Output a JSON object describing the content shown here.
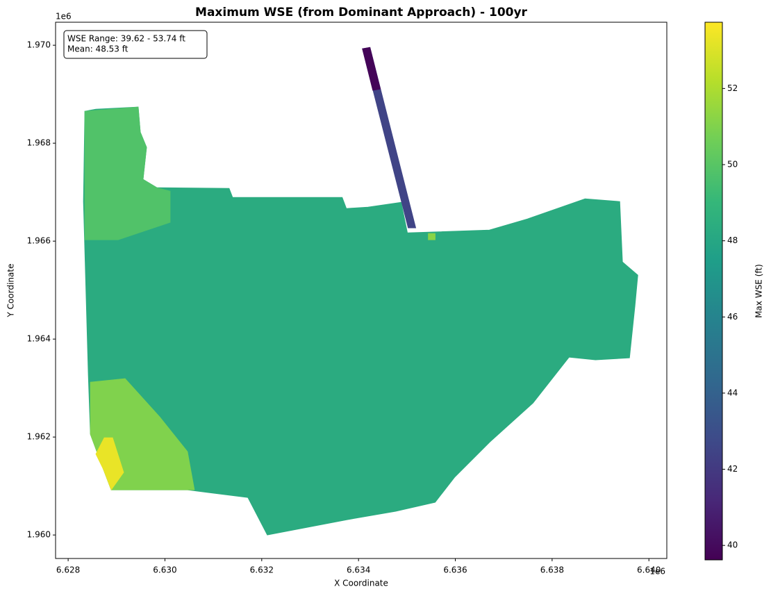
{
  "chart_data": {
    "type": "mesh",
    "title": "Maximum WSE (from Dominant Approach) - 100yr",
    "x_label": "X Coordinate",
    "y_label": "Y Coordinate",
    "x_offset_label": "1e6",
    "y_offset_label": "1e6",
    "annotation": [
      "WSE Range: 39.62 - 53.74 ft",
      "Mean: 48.53 ft"
    ],
    "xlim": [
      6627740,
      6640370
    ],
    "ylim": [
      1959520,
      1970470
    ],
    "xticks": [
      {
        "value": 6628000,
        "label": "6.628"
      },
      {
        "value": 6630000,
        "label": "6.630"
      },
      {
        "value": 6632000,
        "label": "6.632"
      },
      {
        "value": 6634000,
        "label": "6.634"
      },
      {
        "value": 6636000,
        "label": "6.636"
      },
      {
        "value": 6638000,
        "label": "6.638"
      },
      {
        "value": 6640000,
        "label": "6.640"
      }
    ],
    "yticks": [
      {
        "value": 1960000,
        "label": "1.960"
      },
      {
        "value": 1962000,
        "label": "1.962"
      },
      {
        "value": 1964000,
        "label": "1.964"
      },
      {
        "value": 1966000,
        "label": "1.966"
      },
      {
        "value": 1968000,
        "label": "1.968"
      },
      {
        "value": 1970000,
        "label": "1.970"
      }
    ],
    "colormap": "viridis",
    "colorbar": {
      "label": "Max WSE (ft)",
      "lim": [
        39.62,
        53.74
      ],
      "ticks": [
        40,
        42,
        44,
        46,
        48,
        50,
        52
      ]
    },
    "regions": [
      {
        "value": 48.3,
        "x": [
          6628344,
          6628573,
          6629448,
          6629491,
          6629620,
          6629548,
          6629835,
          6631326,
          6631398,
          6633663,
          6633749,
          6634194,
          6634882,
          6635011,
          6636703,
          6637491,
          6638681,
          6639398,
          6639455,
          6639771,
          6639713,
          6639599,
          6638896,
          6638351,
          6637606,
          6636717,
          6635986,
          6635584,
          6634767,
          6633763,
          6632115,
          6631713,
          6630896,
          6630466,
          6628889,
          6628731,
          6628459,
          6628416,
          6628315
        ],
        "y": [
          1968653,
          1968695,
          1968738,
          1968227,
          1967915,
          1967262,
          1967092,
          1967078,
          1966894,
          1966894,
          1966667,
          1966695,
          1966794,
          1966170,
          1966227,
          1966454,
          1966865,
          1966809,
          1965575,
          1965305,
          1964681,
          1963617,
          1963575,
          1963631,
          1962695,
          1961901,
          1961178,
          1960667,
          1960483,
          1960312,
          1960000,
          1960766,
          1960866,
          1960922,
          1960922,
          1961334,
          1962057,
          1963263,
          1966809
        ]
      },
      {
        "value": 49.8,
        "x": [
          6628344,
          6629448,
          6629491,
          6629620,
          6629548,
          6629835,
          6630108,
          6630108,
          6629032,
          6628344
        ],
        "y": [
          1968653,
          1968738,
          1968227,
          1967915,
          1967262,
          1967092,
          1967021,
          1966383,
          1966028,
          1966028
        ]
      },
      {
        "value": 51.0,
        "x": [
          6628459,
          6629176,
          6629892,
          6630466,
          6630609,
          6628889,
          6628731,
          6628459
        ],
        "y": [
          1963121,
          1963192,
          1962412,
          1961702,
          1960922,
          1960922,
          1961334,
          1962057
        ]
      },
      {
        "value": 53.3,
        "x": [
          6628746,
          6628918,
          6629147,
          6628889,
          6628731,
          6628573
        ],
        "y": [
          1961986,
          1961986,
          1961277,
          1960922,
          1961334,
          1961653
        ]
      },
      {
        "value": 42.5,
        "x": [
          6634079,
          6634237,
          6635183,
          6635025
        ],
        "y": [
          1969929,
          1969957,
          1966270,
          1966270
        ]
      },
      {
        "value": 39.8,
        "x": [
          6634079,
          6634237,
          6634452,
          6634294
        ],
        "y": [
          1969929,
          1969957,
          1969106,
          1969078
        ]
      },
      {
        "value": 51.2,
        "x": [
          6635441,
          6635584,
          6635584,
          6635441
        ],
        "y": [
          1966156,
          1966156,
          1966028,
          1966028
        ]
      }
    ]
  }
}
